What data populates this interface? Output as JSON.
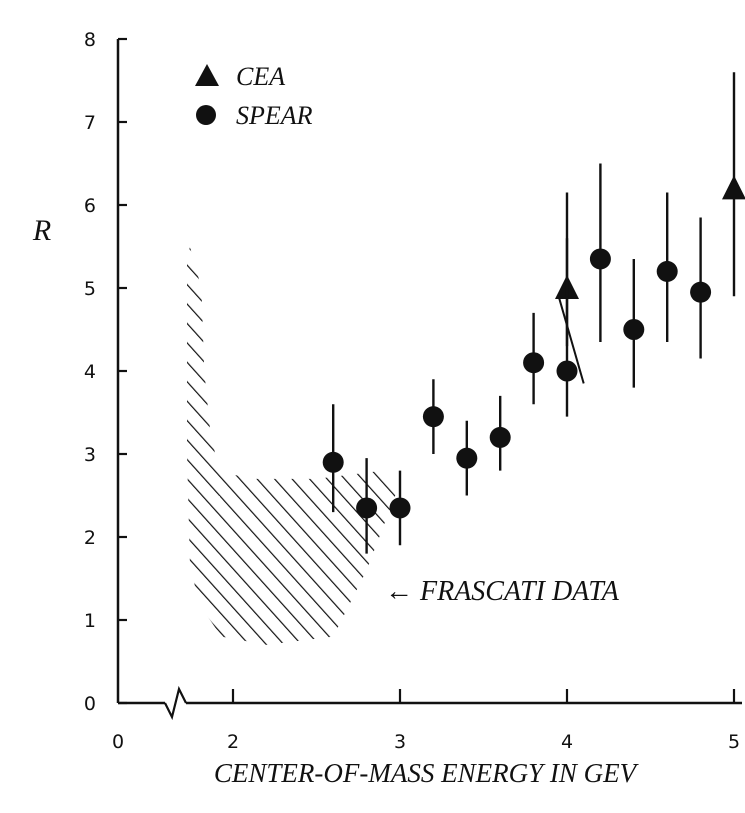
{
  "chart_data": {
    "type": "scatter",
    "title": "",
    "xlabel": "CENTER-OF-MASS ENERGY IN GEV",
    "ylabel": "R",
    "xlim": [
      0,
      5
    ],
    "ylim": [
      0,
      8
    ],
    "x_axis_break": true,
    "x_ticks": [
      "0",
      "2",
      "3",
      "4",
      "5"
    ],
    "y_ticks": [
      "0",
      "1",
      "2",
      "3",
      "4",
      "5",
      "6",
      "7",
      "8"
    ],
    "legend_position": "top-left",
    "series": [
      {
        "name": "CEA",
        "marker": "triangle",
        "points": [
          {
            "x": 4.0,
            "y": 5.0,
            "err_low": 4.3,
            "err_high": 5.6
          },
          {
            "x": 5.0,
            "y": 6.2,
            "err_low": 4.9,
            "err_high": 7.6
          }
        ]
      },
      {
        "name": "SPEAR",
        "marker": "circle",
        "points": [
          {
            "x": 2.6,
            "y": 2.9,
            "err_low": 2.3,
            "err_high": 3.6
          },
          {
            "x": 2.8,
            "y": 2.35,
            "err_low": 1.8,
            "err_high": 2.95
          },
          {
            "x": 3.0,
            "y": 2.35,
            "err_low": 1.9,
            "err_high": 2.8
          },
          {
            "x": 3.2,
            "y": 3.45,
            "err_low": 3.0,
            "err_high": 3.9
          },
          {
            "x": 3.4,
            "y": 2.95,
            "err_low": 2.5,
            "err_high": 3.4
          },
          {
            "x": 3.6,
            "y": 3.2,
            "err_low": 2.8,
            "err_high": 3.7
          },
          {
            "x": 3.8,
            "y": 4.1,
            "err_low": 3.6,
            "err_high": 4.7
          },
          {
            "x": 4.0,
            "y": 4.0,
            "err_low": 3.45,
            "err_high": 6.15
          },
          {
            "x": 4.2,
            "y": 5.35,
            "err_low": 4.35,
            "err_high": 6.5
          },
          {
            "x": 4.4,
            "y": 4.5,
            "err_low": 3.8,
            "err_high": 5.35
          },
          {
            "x": 4.6,
            "y": 5.2,
            "err_low": 4.35,
            "err_high": 6.15
          },
          {
            "x": 4.8,
            "y": 4.95,
            "err_low": 4.15,
            "err_high": 5.85
          }
        ]
      }
    ],
    "region": {
      "name": "FRASCATI DATA",
      "annotation": "← FRASCATI DATA",
      "outline": [
        [
          1.25,
          5.5
        ],
        [
          1.45,
          5.0
        ],
        [
          1.5,
          4.0
        ],
        [
          1.6,
          3.3
        ],
        [
          1.75,
          2.8
        ],
        [
          2.1,
          2.7
        ],
        [
          2.5,
          2.7
        ],
        [
          2.9,
          2.8
        ],
        [
          3.0,
          2.65
        ],
        [
          2.8,
          1.6
        ],
        [
          2.6,
          0.8
        ],
        [
          2.2,
          0.7
        ],
        [
          1.8,
          0.8
        ],
        [
          1.4,
          1.2
        ],
        [
          1.25,
          1.7
        ],
        [
          1.2,
          3.0
        ],
        [
          1.2,
          5.3
        ]
      ]
    }
  }
}
